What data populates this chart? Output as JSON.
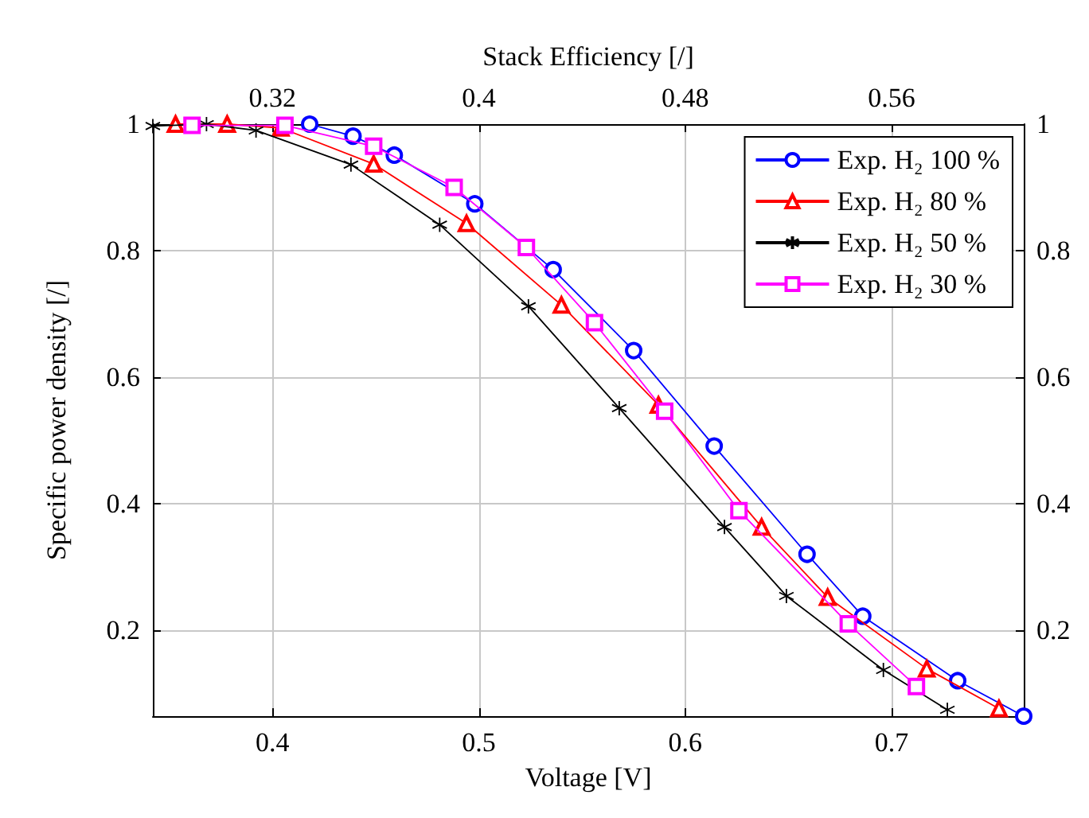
{
  "chart_data": {
    "type": "line",
    "x2label": "Stack Efficiency [/]",
    "xlabel": "Voltage [V]",
    "ylabel": "Specific power density [/]",
    "xlim": [
      0.342,
      0.764
    ],
    "xticks": [
      0.4,
      0.5,
      0.6,
      0.7
    ],
    "x2lim": [
      0.2736,
      0.6112
    ],
    "x2ticks": [
      0.32,
      0.4,
      0.48,
      0.56
    ],
    "ylim": [
      0.064,
      1
    ],
    "yticks": [
      0.2,
      0.4,
      0.6,
      0.8,
      1
    ],
    "y2lim": [
      0.064,
      1
    ],
    "y2ticks": [
      0.2,
      0.4,
      0.6,
      0.8,
      1
    ],
    "grid": true,
    "legend": "top right",
    "line_style": "solid",
    "series": [
      {
        "name": "Exp. H₂ 100 %",
        "color": "#0000ff",
        "marker": "circle",
        "x": [
          0.418,
          0.439,
          0.459,
          0.498,
          0.536,
          0.575,
          0.614,
          0.659,
          0.686,
          0.732,
          0.764
        ],
        "values": [
          1.0,
          0.981,
          0.951,
          0.874,
          0.77,
          0.642,
          0.491,
          0.32,
          0.222,
          0.12,
          0.064
        ]
      },
      {
        "name": "Exp. H₂ 80 %",
        "color": "#ff0000",
        "marker": "triangle",
        "x": [
          0.353,
          0.378,
          0.404,
          0.449,
          0.494,
          0.54,
          0.587,
          0.637,
          0.669,
          0.717,
          0.752
        ],
        "values": [
          1.0,
          1.0,
          0.994,
          0.937,
          0.843,
          0.714,
          0.556,
          0.363,
          0.252,
          0.139,
          0.076
        ]
      },
      {
        "name": "Exp. H₂ 50 %",
        "color": "#000000",
        "marker": "cross",
        "x": [
          0.342,
          0.368,
          0.392,
          0.438,
          0.481,
          0.524,
          0.568,
          0.619,
          0.649,
          0.696,
          0.727
        ],
        "values": [
          0.997,
          1.0,
          0.99,
          0.936,
          0.841,
          0.712,
          0.551,
          0.363,
          0.254,
          0.137,
          0.074
        ]
      },
      {
        "name": "Exp. H₂ 30 %",
        "color": "#ff00ff",
        "marker": "square",
        "x": [
          0.361,
          0.406,
          0.449,
          0.488,
          0.523,
          0.556,
          0.59,
          0.626,
          0.679,
          0.712
        ],
        "values": [
          0.998,
          0.998,
          0.965,
          0.9,
          0.805,
          0.686,
          0.546,
          0.389,
          0.21,
          0.111
        ]
      }
    ]
  }
}
